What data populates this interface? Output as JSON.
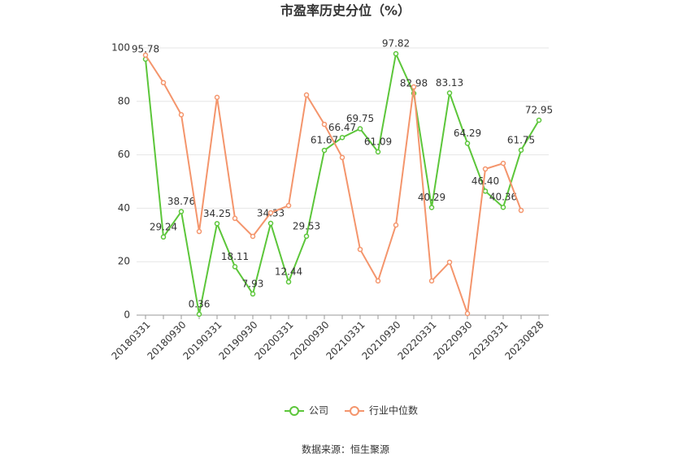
{
  "chart_data": {
    "type": "line",
    "title": "市盈率历史分位（%）",
    "categories": [
      "20180331",
      null,
      "20180930",
      null,
      "20190331",
      null,
      "20190930",
      null,
      "20200331",
      null,
      "20200930",
      null,
      "20210331",
      null,
      "20210930",
      null,
      "20220331",
      null,
      "20220930",
      null,
      "20230331",
      null,
      "20230828"
    ],
    "series": [
      {
        "name": "公司",
        "color": "#5cc63a",
        "values": [
          95.78,
          29.24,
          38.76,
          0.36,
          34.25,
          18.11,
          7.93,
          34.33,
          12.44,
          29.53,
          61.67,
          66.47,
          69.75,
          61.09,
          97.82,
          82.98,
          40.29,
          83.13,
          64.29,
          46.4,
          40.36,
          61.75,
          72.95
        ],
        "value_labels": [
          "95.78",
          "29.24",
          "38.76",
          "0.36",
          "34.25",
          "18.11",
          "7.93",
          "34.33",
          "12.44",
          "29.53",
          "61.67",
          "66.47",
          "69.75",
          "61.09",
          "97.82",
          "82.98",
          "40.29",
          "83.13",
          "64.29",
          "46.40",
          "40.36",
          "61.75",
          "72.95"
        ]
      },
      {
        "name": "行业中位数",
        "color": "#f4956c",
        "values": [
          97.3,
          87,
          75,
          31.3,
          81.5,
          36.2,
          29.5,
          38.3,
          41,
          82.4,
          71.4,
          59,
          24.6,
          12.8,
          33.7,
          85.4,
          12.8,
          19.8,
          0.6,
          54.7,
          56.8,
          39.2,
          null
        ]
      }
    ],
    "ylim": [
      0,
      100
    ],
    "yticks": [
      0,
      20,
      40,
      60,
      80,
      100
    ],
    "grid": true,
    "source": "数据来源：恒生聚源"
  }
}
